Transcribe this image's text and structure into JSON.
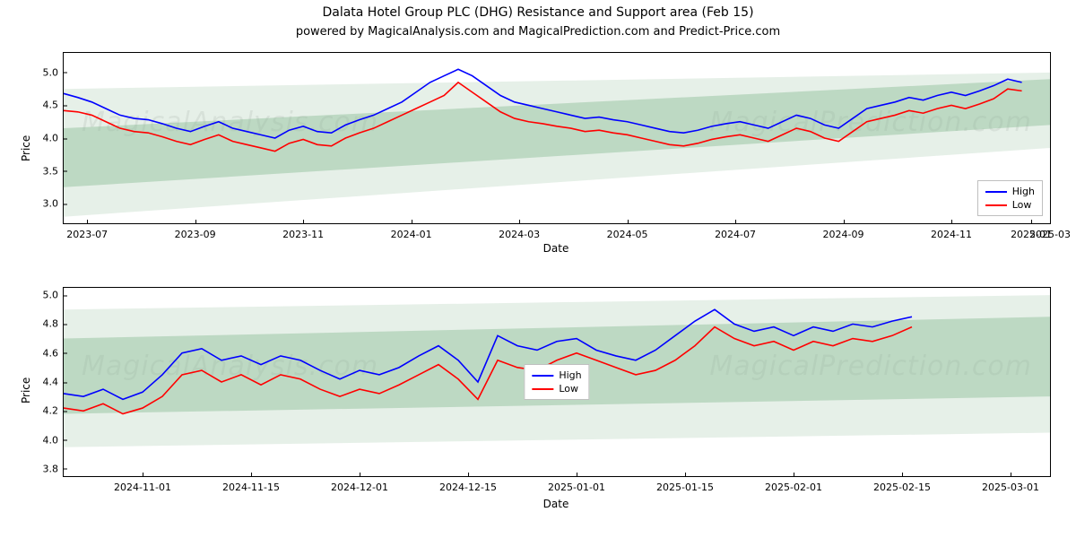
{
  "title": "Dalata Hotel Group PLC (DHG) Resistance and Support area (Feb 15)",
  "subtitle": "powered by MagicalAnalysis.com and MagicalPrediction.com and Predict-Price.com",
  "title_fontsize": 14,
  "subtitle_fontsize": 13,
  "global": {
    "background_color": "#ffffff",
    "axes_border_color": "#000000",
    "tick_fontsize": 11,
    "label_fontsize": 12
  },
  "colors": {
    "high_line": "#0000ff",
    "low_line": "#ff0000",
    "band_inner": "rgba(140, 188, 150, 0.45)",
    "band_outer": "rgba(140, 188, 150, 0.22)",
    "legend_border": "#bfbfbf"
  },
  "watermarks": {
    "top_left": "MagicalAnalysis.com",
    "top_right": "MagicalPrediction.com",
    "bottom_left": "MagicalAnalysis.com",
    "bottom_right": "MagicalPrediction.com"
  },
  "legend": {
    "items": [
      {
        "label": "High",
        "color": "#0000ff"
      },
      {
        "label": "Low",
        "color": "#ff0000"
      }
    ]
  },
  "panel_top": {
    "type": "line",
    "xlabel": "Date",
    "ylabel": "Price",
    "xlim": [
      0,
      21
    ],
    "ylim": [
      2.7,
      5.3
    ],
    "ytick_values": [
      3.0,
      3.5,
      4.0,
      4.5,
      5.0
    ],
    "ytick_labels": [
      "3.0",
      "3.5",
      "4.0",
      "4.5",
      "5.0"
    ],
    "xtick_values": [
      0.5,
      2.8,
      5.1,
      7.4,
      9.7,
      12.0,
      14.3,
      16.6,
      18.9,
      20.6,
      21.0
    ],
    "xtick_labels": [
      "2023-07",
      "2023-09",
      "2023-11",
      "2024-01",
      "2024-03",
      "2024-05",
      "2024-07",
      "2024-09",
      "2024-11",
      "2025-01",
      "2025-03"
    ],
    "bands": {
      "outer": {
        "y0_start": 2.8,
        "y1_start": 4.75,
        "y0_end": 3.85,
        "y1_end": 5.0,
        "x_start": 0,
        "x_end": 21
      },
      "inner": {
        "y0_start": 3.25,
        "y1_start": 4.15,
        "y0_end": 4.2,
        "y1_end": 4.9,
        "x_start": 0,
        "x_end": 21
      }
    },
    "series_x": [
      0,
      0.3,
      0.6,
      0.9,
      1.2,
      1.5,
      1.8,
      2.1,
      2.4,
      2.7,
      3.0,
      3.3,
      3.6,
      3.9,
      4.2,
      4.5,
      4.8,
      5.1,
      5.4,
      5.7,
      6.0,
      6.3,
      6.6,
      6.9,
      7.2,
      7.5,
      7.8,
      8.1,
      8.4,
      8.7,
      9.0,
      9.3,
      9.6,
      9.9,
      10.2,
      10.5,
      10.8,
      11.1,
      11.4,
      11.7,
      12.0,
      12.3,
      12.6,
      12.9,
      13.2,
      13.5,
      13.8,
      14.1,
      14.4,
      14.7,
      15.0,
      15.3,
      15.6,
      15.9,
      16.2,
      16.5,
      16.8,
      17.1,
      17.4,
      17.7,
      18.0,
      18.3,
      18.6,
      18.9,
      19.2,
      19.5,
      19.8,
      20.1,
      20.4
    ],
    "series_high": [
      4.68,
      4.62,
      4.55,
      4.45,
      4.35,
      4.3,
      4.28,
      4.22,
      4.15,
      4.1,
      4.18,
      4.25,
      4.15,
      4.1,
      4.05,
      4.0,
      4.12,
      4.18,
      4.1,
      4.08,
      4.2,
      4.28,
      4.35,
      4.45,
      4.55,
      4.7,
      4.85,
      4.95,
      5.05,
      4.95,
      4.8,
      4.65,
      4.55,
      4.5,
      4.45,
      4.4,
      4.35,
      4.3,
      4.32,
      4.28,
      4.25,
      4.2,
      4.15,
      4.1,
      4.08,
      4.12,
      4.18,
      4.22,
      4.25,
      4.2,
      4.15,
      4.25,
      4.35,
      4.3,
      4.2,
      4.15,
      4.3,
      4.45,
      4.5,
      4.55,
      4.62,
      4.58,
      4.65,
      4.7,
      4.65,
      4.72,
      4.8,
      4.9,
      4.85
    ],
    "series_low": [
      4.42,
      4.4,
      4.35,
      4.25,
      4.15,
      4.1,
      4.08,
      4.02,
      3.95,
      3.9,
      3.98,
      4.05,
      3.95,
      3.9,
      3.85,
      3.8,
      3.92,
      3.98,
      3.9,
      3.88,
      4.0,
      4.08,
      4.15,
      4.25,
      4.35,
      4.45,
      4.55,
      4.65,
      4.85,
      4.7,
      4.55,
      4.4,
      4.3,
      4.25,
      4.22,
      4.18,
      4.15,
      4.1,
      4.12,
      4.08,
      4.05,
      4.0,
      3.95,
      3.9,
      3.88,
      3.92,
      3.98,
      4.02,
      4.05,
      4.0,
      3.95,
      4.05,
      4.15,
      4.1,
      4.0,
      3.95,
      4.1,
      4.25,
      4.3,
      4.35,
      4.42,
      4.38,
      4.45,
      4.5,
      4.45,
      4.52,
      4.6,
      4.75,
      4.72
    ],
    "legend_pos": "bottom-right"
  },
  "panel_bottom": {
    "type": "line",
    "xlabel": "Date",
    "ylabel": "Price",
    "xlim": [
      0,
      10
    ],
    "ylim": [
      3.75,
      5.05
    ],
    "ytick_values": [
      3.8,
      4.0,
      4.2,
      4.4,
      4.6,
      4.8,
      5.0
    ],
    "ytick_labels": [
      "3.8",
      "4.0",
      "4.2",
      "4.4",
      "4.6",
      "4.8",
      "5.0"
    ],
    "xtick_values": [
      0.8,
      1.9,
      3.0,
      4.1,
      5.2,
      6.3,
      7.4,
      8.5,
      9.6
    ],
    "xtick_labels": [
      "2024-11-01",
      "2024-11-15",
      "2024-12-01",
      "2024-12-15",
      "2025-01-01",
      "2025-01-15",
      "2025-02-01",
      "2025-02-15",
      "2025-03-01"
    ],
    "bands": {
      "outer": {
        "y0_start": 3.95,
        "y1_start": 4.9,
        "y0_end": 4.05,
        "y1_end": 5.0,
        "x_start": 0,
        "x_end": 10
      },
      "inner": {
        "y0_start": 4.18,
        "y1_start": 4.7,
        "y0_end": 4.3,
        "y1_end": 4.85,
        "x_start": 0,
        "x_end": 10
      }
    },
    "series_x": [
      0,
      0.2,
      0.4,
      0.6,
      0.8,
      1.0,
      1.2,
      1.4,
      1.6,
      1.8,
      2.0,
      2.2,
      2.4,
      2.6,
      2.8,
      3.0,
      3.2,
      3.4,
      3.6,
      3.8,
      4.0,
      4.2,
      4.4,
      4.6,
      4.8,
      5.0,
      5.2,
      5.4,
      5.6,
      5.8,
      6.0,
      6.2,
      6.4,
      6.6,
      6.8,
      7.0,
      7.2,
      7.4,
      7.6,
      7.8,
      8.0,
      8.2,
      8.4,
      8.6
    ],
    "series_high": [
      4.32,
      4.3,
      4.35,
      4.28,
      4.33,
      4.45,
      4.6,
      4.63,
      4.55,
      4.58,
      4.52,
      4.58,
      4.55,
      4.48,
      4.42,
      4.48,
      4.45,
      4.5,
      4.58,
      4.65,
      4.55,
      4.4,
      4.72,
      4.65,
      4.62,
      4.68,
      4.7,
      4.62,
      4.58,
      4.55,
      4.62,
      4.72,
      4.82,
      4.9,
      4.8,
      4.75,
      4.78,
      4.72,
      4.78,
      4.75,
      4.8,
      4.78,
      4.82,
      4.85
    ],
    "series_low": [
      4.22,
      4.2,
      4.25,
      4.18,
      4.22,
      4.3,
      4.45,
      4.48,
      4.4,
      4.45,
      4.38,
      4.45,
      4.42,
      4.35,
      4.3,
      4.35,
      4.32,
      4.38,
      4.45,
      4.52,
      4.42,
      4.28,
      4.55,
      4.5,
      4.48,
      4.55,
      4.6,
      4.55,
      4.5,
      4.45,
      4.48,
      4.55,
      4.65,
      4.78,
      4.7,
      4.65,
      4.68,
      4.62,
      4.68,
      4.65,
      4.7,
      4.68,
      4.72,
      4.78
    ],
    "legend_pos": "center"
  }
}
